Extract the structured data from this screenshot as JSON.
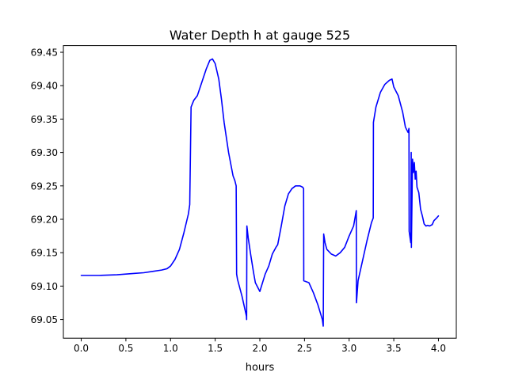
{
  "chart_data": {
    "type": "line",
    "title": "Water Depth h at gauge 525",
    "xlabel": "hours",
    "ylabel": "",
    "xlim": [
      -0.2,
      4.2
    ],
    "ylim": [
      69.022,
      69.46
    ],
    "xticks": [
      0.0,
      0.5,
      1.0,
      1.5,
      2.0,
      2.5,
      3.0,
      3.5,
      4.0
    ],
    "xtick_labels": [
      "0.0",
      "0.5",
      "1.0",
      "1.5",
      "2.0",
      "2.5",
      "3.0",
      "3.5",
      "4.0"
    ],
    "yticks": [
      69.05,
      69.1,
      69.15,
      69.2,
      69.25,
      69.3,
      69.35,
      69.4,
      69.45
    ],
    "ytick_labels": [
      "69.05",
      "69.10",
      "69.15",
      "69.20",
      "69.25",
      "69.30",
      "69.35",
      "69.40",
      "69.45"
    ],
    "grid": false,
    "legend": "none",
    "series": [
      {
        "color": "#0000ff",
        "x": [
          0.0,
          0.2,
          0.4,
          0.6,
          0.7,
          0.8,
          0.9,
          0.96,
          1.0,
          1.05,
          1.1,
          1.15,
          1.2,
          1.215,
          1.23,
          1.26,
          1.3,
          1.35,
          1.4,
          1.44,
          1.47,
          1.5,
          1.54,
          1.57,
          1.6,
          1.65,
          1.7,
          1.72,
          1.735,
          1.74,
          1.75,
          1.8,
          1.85,
          1.852,
          1.855,
          1.87,
          1.9,
          1.93,
          1.95,
          2.0,
          2.03,
          2.06,
          2.1,
          2.14,
          2.18,
          2.2,
          2.24,
          2.28,
          2.32,
          2.36,
          2.4,
          2.45,
          2.48,
          2.49,
          2.492,
          2.55,
          2.6,
          2.65,
          2.7,
          2.71,
          2.715,
          2.73,
          2.75,
          2.8,
          2.85,
          2.9,
          2.95,
          3.0,
          3.05,
          3.08,
          3.082,
          3.1,
          3.15,
          3.2,
          3.25,
          3.27,
          3.272,
          3.3,
          3.35,
          3.4,
          3.45,
          3.48,
          3.5,
          3.55,
          3.6,
          3.63,
          3.66,
          3.67,
          3.672,
          3.69,
          3.695,
          3.697,
          3.71,
          3.72,
          3.73,
          3.74,
          3.75,
          3.76,
          3.78,
          3.8,
          3.82,
          3.84,
          3.86,
          3.88,
          3.9,
          3.93,
          3.95,
          3.98,
          4.0
        ],
        "y": [
          69.116,
          69.116,
          69.117,
          69.119,
          69.12,
          69.122,
          69.124,
          69.126,
          69.13,
          69.14,
          69.155,
          69.18,
          69.208,
          69.222,
          69.368,
          69.378,
          69.385,
          69.405,
          69.425,
          69.438,
          69.44,
          69.433,
          69.41,
          69.38,
          69.345,
          69.3,
          69.265,
          69.258,
          69.25,
          69.118,
          69.11,
          69.085,
          69.055,
          69.05,
          69.19,
          69.172,
          69.145,
          69.12,
          69.105,
          69.092,
          69.105,
          69.118,
          69.13,
          69.148,
          69.158,
          69.162,
          69.19,
          69.22,
          69.238,
          69.246,
          69.25,
          69.25,
          69.248,
          69.246,
          69.108,
          69.105,
          69.09,
          69.072,
          69.05,
          69.04,
          69.178,
          69.165,
          69.155,
          69.148,
          69.145,
          69.15,
          69.158,
          69.175,
          69.19,
          69.213,
          69.075,
          69.108,
          69.138,
          69.168,
          69.195,
          69.202,
          69.345,
          69.368,
          69.39,
          69.402,
          69.408,
          69.41,
          69.398,
          69.385,
          69.36,
          69.338,
          69.33,
          69.336,
          69.182,
          69.165,
          69.3,
          69.158,
          69.29,
          69.27,
          69.285,
          69.26,
          69.272,
          69.248,
          69.24,
          69.215,
          69.205,
          69.193,
          69.19,
          69.191,
          69.19,
          69.192,
          69.198,
          69.202,
          69.205
        ]
      }
    ]
  }
}
